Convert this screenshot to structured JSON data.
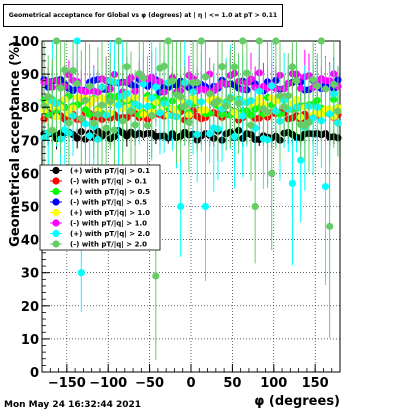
{
  "chart_data": {
    "type": "scatter",
    "title": "Geometrical acceptance for Global vs φ (degrees) at | η | <= 1.0 at pT > 0.11",
    "xlabel": "φ (degrees)",
    "ylabel": "Geometrical acceptance (%)",
    "xlim": [
      -180,
      180
    ],
    "ylim": [
      0,
      100
    ],
    "x_ticks": [
      -150,
      -100,
      -50,
      0,
      50,
      100,
      150
    ],
    "y_ticks": [
      0,
      10,
      20,
      30,
      40,
      50,
      60,
      70,
      80,
      90,
      100
    ],
    "grid": true,
    "legend_position": "left",
    "n_bins": 72,
    "series": [
      {
        "name": "(+) with pT/|q| > 0.1",
        "color": "#000000",
        "mean": 71.5,
        "spread": 1.5,
        "err": 2.5
      },
      {
        "name": "(-) with pT/|q| > 0.1",
        "color": "#ff0000",
        "mean": 77.5,
        "spread": 1.5,
        "err": 2.5
      },
      {
        "name": "(+) with pT/|q| > 0.5",
        "color": "#00ff00",
        "mean": 80.5,
        "spread": 3,
        "err": 4
      },
      {
        "name": "(-) with pT/|q| > 0.5",
        "color": "#0000ff",
        "mean": 86.5,
        "spread": 2,
        "err": 3
      },
      {
        "name": "(+) with pT/|q| > 1.0",
        "color": "#ffff00",
        "mean": 80.0,
        "spread": 3,
        "err": 6
      },
      {
        "name": "(-) with pT/|q| > 1.0",
        "color": "#ff00ff",
        "mean": 87.5,
        "spread": 3,
        "err": 6
      },
      {
        "name": "(+) with pT/|q| > 2.0",
        "color": "#00ffff",
        "mean": 79.0,
        "spread": 9,
        "err": 14
      },
      {
        "name": "(-) with pT/|q| > 2.0",
        "color": "#66cc66",
        "mean": 83.0,
        "spread": 10,
        "err": 16
      }
    ],
    "outliers": [
      {
        "series": 7,
        "x": -42.5,
        "y": 29
      },
      {
        "series": 6,
        "x": -132.5,
        "y": 30
      },
      {
        "series": 6,
        "x": -12.5,
        "y": 50
      },
      {
        "series": 6,
        "x": 17.5,
        "y": 50
      },
      {
        "series": 7,
        "x": 77.5,
        "y": 50
      },
      {
        "series": 7,
        "x": 102.5,
        "y": 50
      },
      {
        "series": 7,
        "x": 97.5,
        "y": 60
      },
      {
        "series": 6,
        "x": 122.5,
        "y": 57
      },
      {
        "series": 6,
        "x": 162.5,
        "y": 56
      },
      {
        "series": 7,
        "x": 167.5,
        "y": 44
      },
      {
        "series": 6,
        "x": 132.5,
        "y": 64
      },
      {
        "series": 7,
        "x": -162.5,
        "y": 100
      },
      {
        "series": 6,
        "x": -137.5,
        "y": 100
      },
      {
        "series": 7,
        "x": -87.5,
        "y": 100
      },
      {
        "series": 7,
        "x": -27.5,
        "y": 100
      },
      {
        "series": 7,
        "x": 12.5,
        "y": 100
      },
      {
        "series": 7,
        "x": 62.5,
        "y": 100
      },
      {
        "series": 7,
        "x": 82.5,
        "y": 100
      },
      {
        "series": 7,
        "x": 102.5,
        "y": 100
      },
      {
        "series": 7,
        "x": 157.5,
        "y": 100
      }
    ]
  },
  "footer": {
    "timestamp": "Mon May 24 16:32:44 2021"
  }
}
